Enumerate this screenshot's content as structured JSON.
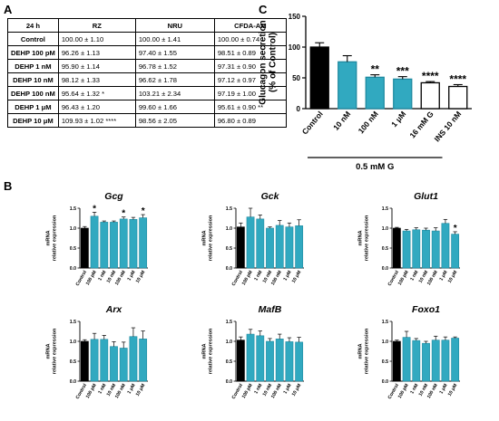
{
  "panels": {
    "a": "A",
    "b": "B",
    "c": "C"
  },
  "table": {
    "headers": [
      "24 h",
      "RZ",
      "NRU",
      "CFDA-AM"
    ],
    "rows": [
      [
        "Control",
        "100.00 ± 1.10",
        "100.00 ± 1.41",
        "100.00 ± 0.74"
      ],
      [
        "DEHP 100 pM",
        "96.26 ± 1.13",
        "97.40 ± 1.55",
        "98.51 ± 0.89"
      ],
      [
        "DEHP 1 nM",
        "95.90 ± 1.14",
        "96.78 ± 1.52",
        "97.31 ± 0.90"
      ],
      [
        "DEHP 10 nM",
        "98.12 ± 1.33",
        "96.62 ± 1.78",
        "97.12 ± 0.97"
      ],
      [
        "DEHP 100 nM",
        "95.64 ± 1.32 *",
        "103.21 ± 2.34",
        "97.19 ± 1.00"
      ],
      [
        "DEHP 1 μM",
        "96.43 ± 1.20",
        "99.60 ± 1.66",
        "95.61 ± 0.90 **"
      ],
      [
        "DEHP 10 μM",
        "109.93 ± 1.02 ****",
        "98.56 ± 2.05",
        "96.80 ± 0.89"
      ]
    ]
  },
  "chart_data": [
    {
      "id": "C",
      "type": "bar",
      "ylabel": "Glucagon secretion\n(% of Control)",
      "ylim": [
        0,
        150
      ],
      "yticks": [
        0,
        50,
        100,
        150
      ],
      "categories": [
        "Control",
        "10 nM",
        "100 nM",
        "1 μM",
        "16 mM G",
        "INS 10 nM"
      ],
      "values": [
        100,
        76,
        51,
        48,
        42,
        36
      ],
      "errors": [
        7,
        10,
        4,
        4,
        2,
        3
      ],
      "significance": [
        "",
        "",
        "**",
        "***",
        "****",
        "****"
      ],
      "fills": [
        "#000000",
        "#31a9c0",
        "#31a9c0",
        "#31a9c0",
        "#ffffff",
        "#ffffff"
      ],
      "group_label": "0.5 mM G",
      "group_span": [
        0,
        4
      ]
    },
    {
      "id": "Gcg",
      "type": "bar",
      "title": "Gcg",
      "ylabel": "mRNA\nrelative expression",
      "ylim": [
        0,
        1.5
      ],
      "yticks": [
        0,
        0.5,
        1.0,
        1.5
      ],
      "categories": [
        "Control",
        "100 pM",
        "1 nM",
        "10 nM",
        "100 nM",
        "1 μM",
        "10 μM"
      ],
      "values": [
        1.0,
        1.3,
        1.15,
        1.15,
        1.23,
        1.22,
        1.26
      ],
      "errors": [
        0.04,
        0.1,
        0.03,
        0.03,
        0.05,
        0.05,
        0.08
      ],
      "significance": [
        "",
        "*",
        "",
        "",
        "*",
        "",
        "*"
      ]
    },
    {
      "id": "Gck",
      "type": "bar",
      "title": "Gck",
      "ylabel": "mRNA\nrelative expression",
      "ylim": [
        0,
        1.5
      ],
      "yticks": [
        0,
        0.5,
        1.0,
        1.5
      ],
      "categories": [
        "Control",
        "100 pM",
        "1 nM",
        "10 nM",
        "100 nM",
        "1 μM",
        "10 μM"
      ],
      "values": [
        1.03,
        1.28,
        1.23,
        1.0,
        1.07,
        1.03,
        1.06
      ],
      "errors": [
        0.1,
        0.22,
        0.1,
        0.03,
        0.12,
        0.1,
        0.15
      ],
      "significance": [
        "",
        "",
        "",
        "",
        "",
        "",
        ""
      ]
    },
    {
      "id": "Glut1",
      "type": "bar",
      "title": "Glut1",
      "ylabel": "mRNA\nrelative expression",
      "ylim": [
        0,
        1.5
      ],
      "yticks": [
        0,
        0.5,
        1.0,
        1.5
      ],
      "categories": [
        "Control",
        "100 pM",
        "1 nM",
        "10 nM",
        "100 nM",
        "1 μM",
        "10 μM"
      ],
      "values": [
        1.0,
        0.93,
        0.96,
        0.95,
        0.93,
        1.12,
        0.85
      ],
      "errors": [
        0.02,
        0.04,
        0.05,
        0.05,
        0.08,
        0.1,
        0.06
      ],
      "significance": [
        "",
        "",
        "",
        "",
        "",
        "",
        "*"
      ]
    },
    {
      "id": "Arx",
      "type": "bar",
      "title": "Arx",
      "ylabel": "mRNA\nrelative expression",
      "ylim": [
        0,
        1.5
      ],
      "yticks": [
        0,
        0.5,
        1.0,
        1.5
      ],
      "categories": [
        "Control",
        "100 pM",
        "1 nM",
        "10 nM",
        "100 nM",
        "1 μM",
        "10 μM"
      ],
      "values": [
        1.0,
        1.05,
        1.05,
        0.87,
        0.83,
        1.12,
        1.06
      ],
      "errors": [
        0.04,
        0.15,
        0.1,
        0.12,
        0.15,
        0.22,
        0.2
      ],
      "significance": [
        "",
        "",
        "",
        "",
        "",
        "",
        ""
      ]
    },
    {
      "id": "MafB",
      "type": "bar",
      "title": "MafB",
      "ylabel": "mRNA\nrelative expression",
      "ylim": [
        0,
        1.5
      ],
      "yticks": [
        0,
        0.5,
        1.0,
        1.5
      ],
      "categories": [
        "Control",
        "100 pM",
        "1 nM",
        "10 nM",
        "100 nM",
        "1 μM",
        "10 μM"
      ],
      "values": [
        1.03,
        1.18,
        1.14,
        1.0,
        1.06,
        0.99,
        0.98
      ],
      "errors": [
        0.08,
        0.12,
        0.12,
        0.07,
        0.12,
        0.1,
        0.12
      ],
      "significance": [
        "",
        "",
        "",
        "",
        "",
        "",
        ""
      ]
    },
    {
      "id": "Foxo1",
      "type": "bar",
      "title": "Foxo1",
      "ylabel": "mRNA\nrelative expression",
      "ylim": [
        0,
        1.5
      ],
      "yticks": [
        0,
        0.5,
        1.0,
        1.5
      ],
      "categories": [
        "Control",
        "100 pM",
        "1 nM",
        "10 nM",
        "100 nM",
        "1 μM",
        "10 μM"
      ],
      "values": [
        1.0,
        1.1,
        1.02,
        0.95,
        1.03,
        1.03,
        1.08
      ],
      "errors": [
        0.03,
        0.15,
        0.05,
        0.05,
        0.1,
        0.08,
        0.03
      ],
      "significance": [
        "",
        "",
        "",
        "",
        "",
        "",
        ""
      ]
    }
  ],
  "colors": {
    "control": "#000000",
    "treated": "#31a9c0",
    "reference": "#ffffff",
    "axis": "#000000"
  }
}
